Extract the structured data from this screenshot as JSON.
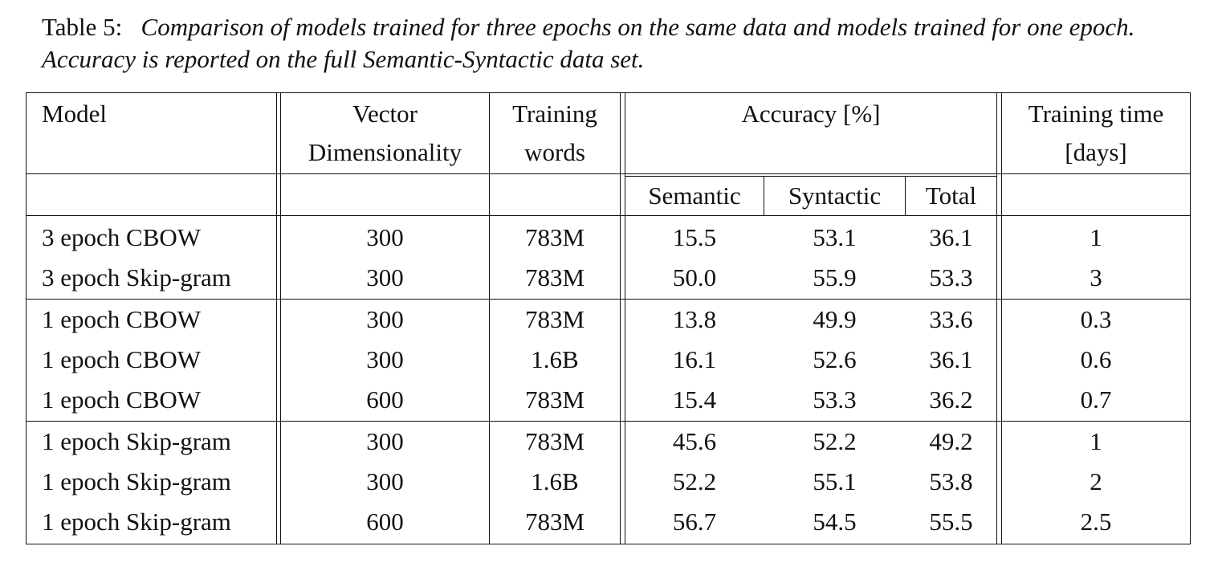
{
  "caption": {
    "label": "Table 5:",
    "text": "Comparison of models trained for three epochs on the same data and models trained for one epoch. Accuracy is reported on the full Semantic-Syntactic data set."
  },
  "table": {
    "headers": {
      "model": "Model",
      "vector_line1": "Vector",
      "vector_line2": "Dimensionality",
      "training_line1": "Training",
      "training_line2": "words",
      "accuracy": "Accuracy [%]",
      "time_line1": "Training time",
      "time_line2": "[days]",
      "semantic": "Semantic",
      "syntactic": "Syntactic",
      "total": "Total"
    },
    "rows": [
      {
        "model": "3 epoch CBOW",
        "dim": "300",
        "words": "783M",
        "semantic": "15.5",
        "syntactic": "53.1",
        "total": "36.1",
        "time": "1"
      },
      {
        "model": "3 epoch Skip-gram",
        "dim": "300",
        "words": "783M",
        "semantic": "50.0",
        "syntactic": "55.9",
        "total": "53.3",
        "time": "3"
      },
      {
        "model": "1 epoch CBOW",
        "dim": "300",
        "words": "783M",
        "semantic": "13.8",
        "syntactic": "49.9",
        "total": "33.6",
        "time": "0.3"
      },
      {
        "model": "1 epoch CBOW",
        "dim": "300",
        "words": "1.6B",
        "semantic": "16.1",
        "syntactic": "52.6",
        "total": "36.1",
        "time": "0.6"
      },
      {
        "model": "1 epoch CBOW",
        "dim": "600",
        "words": "783M",
        "semantic": "15.4",
        "syntactic": "53.3",
        "total": "36.2",
        "time": "0.7"
      },
      {
        "model": "1 epoch Skip-gram",
        "dim": "300",
        "words": "783M",
        "semantic": "45.6",
        "syntactic": "52.2",
        "total": "49.2",
        "time": "1"
      },
      {
        "model": "1 epoch Skip-gram",
        "dim": "300",
        "words": "1.6B",
        "semantic": "52.2",
        "syntactic": "55.1",
        "total": "53.8",
        "time": "2"
      },
      {
        "model": "1 epoch Skip-gram",
        "dim": "600",
        "words": "783M",
        "semantic": "56.7",
        "syntactic": "54.5",
        "total": "55.5",
        "time": "2.5"
      }
    ]
  }
}
